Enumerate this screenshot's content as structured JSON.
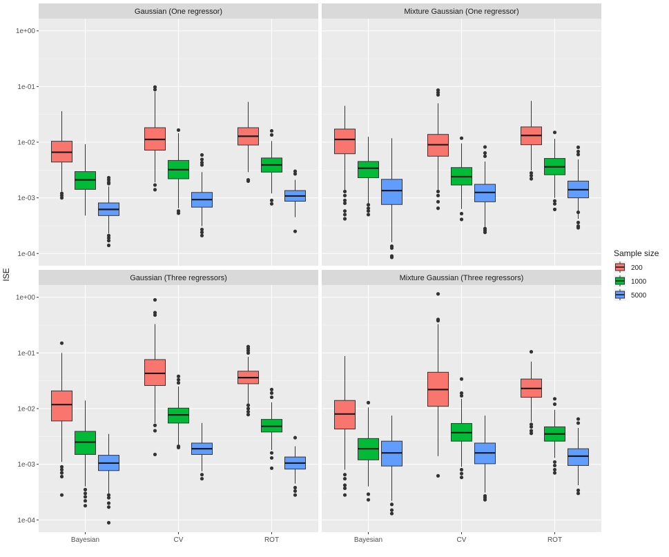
{
  "chart_data": {
    "type": "boxplot",
    "ylabel": "ISE",
    "y_scale": "log10",
    "y_ticks": [
      {
        "value": 1,
        "label": "1e+00"
      },
      {
        "value": 0.1,
        "label": "1e-01"
      },
      {
        "value": 0.01,
        "label": "1e-02"
      },
      {
        "value": 0.001,
        "label": "1e-03"
      },
      {
        "value": 0.0001,
        "label": "1e-04"
      }
    ],
    "ylim": [
      6e-05,
      1.6
    ],
    "categories": [
      "Bayesian",
      "CV",
      "ROT"
    ],
    "legend": {
      "title": "Sample size",
      "position": "right",
      "entries": [
        {
          "label": "200",
          "color": "#F8766D"
        },
        {
          "label": "1000",
          "color": "#00BA38"
        },
        {
          "label": "5000",
          "color": "#619CFF"
        }
      ]
    },
    "panels": [
      {
        "title": "Gaussian (One regressor)",
        "groups": [
          {
            "category": "Bayesian",
            "series": "200",
            "whisker_low": 0.0013,
            "q1": 0.0044,
            "median": 0.0066,
            "q3": 0.0104,
            "whisker_high": 0.036,
            "outliers": [
              0.0012,
              0.0011,
              0.001
            ]
          },
          {
            "category": "Bayesian",
            "series": "1000",
            "whisker_low": 0.00048,
            "q1": 0.00142,
            "median": 0.0021,
            "q3": 0.00296,
            "whisker_high": 0.0092,
            "outliers": []
          },
          {
            "category": "Bayesian",
            "series": "5000",
            "whisker_low": 0.00023,
            "q1": 0.00048,
            "median": 0.00062,
            "q3": 0.00081,
            "whisker_high": 0.0016,
            "outliers": [
              0.0023,
              0.0021,
              0.0019,
              0.0018,
              0.00021,
              0.00019,
              0.00017,
              0.00014
            ]
          },
          {
            "category": "CV",
            "series": "200",
            "whisker_low": 0.0019,
            "q1": 0.0072,
            "median": 0.0112,
            "q3": 0.0182,
            "whisker_high": 0.08,
            "outliers": [
              0.098,
              0.088,
              0.0017,
              0.0014
            ]
          },
          {
            "category": "CV",
            "series": "1000",
            "whisker_low": 0.00065,
            "q1": 0.0022,
            "median": 0.0032,
            "q3": 0.0047,
            "whisker_high": 0.0145,
            "outliers": [
              0.0165,
              0.00058,
              0.00053
            ]
          },
          {
            "category": "CV",
            "series": "5000",
            "whisker_low": 0.00031,
            "q1": 0.00068,
            "median": 0.00093,
            "q3": 0.00125,
            "whisker_high": 0.0029,
            "outliers": [
              0.0059,
              0.0049,
              0.0043,
              0.0039,
              0.00027,
              0.00024,
              0.00021
            ]
          },
          {
            "category": "ROT",
            "series": "200",
            "whisker_low": 0.0029,
            "q1": 0.0089,
            "median": 0.0128,
            "q3": 0.0182,
            "whisker_high": 0.053,
            "outliers": [
              0.0021,
              0.002
            ]
          },
          {
            "category": "ROT",
            "series": "1000",
            "whisker_low": 0.0012,
            "q1": 0.0029,
            "median": 0.0039,
            "q3": 0.0052,
            "whisker_high": 0.0105,
            "outliers": [
              0.016,
              0.0135,
              0.0009,
              0.00078
            ]
          },
          {
            "category": "ROT",
            "series": "5000",
            "whisker_low": 0.00045,
            "q1": 0.00087,
            "median": 0.00108,
            "q3": 0.00135,
            "whisker_high": 0.0021,
            "outliers": [
              0.003,
              0.0027,
              0.00025
            ]
          }
        ]
      },
      {
        "title": "Mixture Gaussian (One regressor)",
        "groups": [
          {
            "category": "Bayesian",
            "series": "200",
            "whisker_low": 0.0014,
            "q1": 0.0062,
            "median": 0.0112,
            "q3": 0.0172,
            "whisker_high": 0.045,
            "outliers": [
              0.0013,
              0.0011,
              0.0009,
              0.0008,
              0.00058,
              0.0005,
              0.00042
            ]
          },
          {
            "category": "Bayesian",
            "series": "1000",
            "whisker_low": 0.0008,
            "q1": 0.0023,
            "median": 0.0034,
            "q3": 0.0045,
            "whisker_high": 0.0125,
            "outliers": [
              0.00075,
              0.00065,
              0.00058,
              0.0005
            ]
          },
          {
            "category": "Bayesian",
            "series": "5000",
            "whisker_low": 0.00016,
            "q1": 0.00076,
            "median": 0.00135,
            "q3": 0.00215,
            "whisker_high": 0.0118,
            "outliers": [
              0.000135,
              0.000125,
              9e-05,
              8.5e-05
            ]
          },
          {
            "category": "CV",
            "series": "200",
            "whisker_low": 0.0014,
            "q1": 0.0056,
            "median": 0.009,
            "q3": 0.0138,
            "whisker_high": 0.05,
            "outliers": [
              0.086,
              0.078,
              0.071,
              0.0013,
              0.0011,
              0.00085,
              0.00065
            ]
          },
          {
            "category": "CV",
            "series": "1000",
            "whisker_low": 0.00063,
            "q1": 0.0017,
            "median": 0.0024,
            "q3": 0.0035,
            "whisker_high": 0.0095,
            "outliers": [
              0.0118,
              0.00052,
              0.00041
            ]
          },
          {
            "category": "CV",
            "series": "5000",
            "whisker_low": 0.0003,
            "q1": 0.00085,
            "median": 0.00125,
            "q3": 0.00175,
            "whisker_high": 0.0045,
            "outliers": [
              0.0082,
              0.0064,
              0.0056,
              0.00028,
              0.00026,
              0.00024
            ]
          },
          {
            "category": "ROT",
            "series": "200",
            "whisker_low": 0.0031,
            "q1": 0.009,
            "median": 0.0132,
            "q3": 0.0188,
            "whisker_high": 0.055,
            "outliers": [
              0.0028,
              0.0025,
              0.0022
            ]
          },
          {
            "category": "ROT",
            "series": "1000",
            "whisker_low": 0.001,
            "q1": 0.0026,
            "median": 0.0036,
            "q3": 0.0051,
            "whisker_high": 0.0115,
            "outliers": [
              0.015,
              0.00088,
              0.00078,
              0.00062
            ]
          },
          {
            "category": "ROT",
            "series": "5000",
            "whisker_low": 0.00042,
            "q1": 0.001,
            "median": 0.0014,
            "q3": 0.002,
            "whisker_high": 0.0049,
            "outliers": [
              0.0081,
              0.0068,
              0.006,
              0.00055,
              0.00036,
              0.00031,
              0.00029
            ]
          }
        ]
      },
      {
        "title": "Gaussian (Three regressors)",
        "groups": [
          {
            "category": "Bayesian",
            "series": "200",
            "whisker_low": 0.0011,
            "q1": 0.006,
            "median": 0.0118,
            "q3": 0.0208,
            "whisker_high": 0.1,
            "outliers": [
              0.15,
              0.0009,
              0.0008,
              0.0007,
              0.0006,
              0.00028
            ]
          },
          {
            "category": "Bayesian",
            "series": "1000",
            "whisker_low": 0.0004,
            "q1": 0.0015,
            "median": 0.0025,
            "q3": 0.0039,
            "whisker_high": 0.014,
            "outliers": [
              0.00035,
              0.0003,
              0.00026,
              0.00022,
              0.00018
            ]
          },
          {
            "category": "Bayesian",
            "series": "5000",
            "whisker_low": 0.0003,
            "q1": 0.00077,
            "median": 0.00105,
            "q3": 0.00145,
            "whisker_high": 0.0035,
            "outliers": [
              0.00028,
              0.00025,
              0.0002,
              0.00017,
              8.9e-05
            ]
          },
          {
            "category": "CV",
            "series": "200",
            "whisker_low": 0.0055,
            "q1": 0.026,
            "median": 0.043,
            "q3": 0.076,
            "whisker_high": 0.33,
            "outliers": [
              0.9,
              0.53,
              0.48,
              0.005,
              0.004,
              0.0015
            ]
          },
          {
            "category": "CV",
            "series": "1000",
            "whisker_low": 0.0022,
            "q1": 0.0055,
            "median": 0.0077,
            "q3": 0.0102,
            "whisker_high": 0.025,
            "outliers": [
              0.038,
              0.033,
              0.029,
              0.0021,
              0.002
            ]
          },
          {
            "category": "CV",
            "series": "5000",
            "whisker_low": 0.00075,
            "q1": 0.0015,
            "median": 0.0019,
            "q3": 0.0024,
            "whisker_high": 0.0055,
            "outliers": [
              0.00065,
              0.00055
            ]
          },
          {
            "category": "ROT",
            "series": "200",
            "whisker_low": 0.012,
            "q1": 0.028,
            "median": 0.036,
            "q3": 0.047,
            "whisker_high": 0.085,
            "outliers": [
              0.13,
              0.12,
              0.11,
              0.1,
              0.0115,
              0.01,
              0.0088,
              0.0078
            ]
          },
          {
            "category": "ROT",
            "series": "1000",
            "whisker_low": 0.0018,
            "q1": 0.0038,
            "median": 0.0048,
            "q3": 0.0064,
            "whisker_high": 0.013,
            "outliers": [
              0.022,
              0.019,
              0.016,
              0.0016,
              0.0013,
              0.00085
            ]
          },
          {
            "category": "ROT",
            "series": "5000",
            "whisker_low": 0.00045,
            "q1": 0.00082,
            "median": 0.00105,
            "q3": 0.00135,
            "whisker_high": 0.0021,
            "outliers": [
              0.003,
              0.00038,
              0.00033,
              0.00028
            ]
          }
        ]
      },
      {
        "title": "Mixture Gaussian (Three regressors)",
        "groups": [
          {
            "category": "Bayesian",
            "series": "200",
            "whisker_low": 0.0008,
            "q1": 0.0043,
            "median": 0.008,
            "q3": 0.014,
            "whisker_high": 0.088,
            "outliers": [
              0.00065,
              0.00055,
              0.00042,
              0.00037,
              0.00028
            ]
          },
          {
            "category": "Bayesian",
            "series": "1000",
            "whisker_low": 0.0004,
            "q1": 0.0012,
            "median": 0.0019,
            "q3": 0.0029,
            "whisker_high": 0.0105,
            "outliers": [
              0.0128,
              0.00029,
              0.00023
            ]
          },
          {
            "category": "Bayesian",
            "series": "5000",
            "whisker_low": 0.00022,
            "q1": 0.00093,
            "median": 0.0016,
            "q3": 0.0026,
            "whisker_high": 0.0075,
            "outliers": [
              0.00019,
              0.00015,
              0.00013
            ]
          },
          {
            "category": "CV",
            "series": "200",
            "whisker_low": 0.0014,
            "q1": 0.011,
            "median": 0.022,
            "q3": 0.045,
            "whisker_high": 0.33,
            "outliers": [
              1.15,
              0.4,
              0.38,
              0.00062
            ]
          },
          {
            "category": "CV",
            "series": "1000",
            "whisker_low": 0.0009,
            "q1": 0.0026,
            "median": 0.0037,
            "q3": 0.0054,
            "whisker_high": 0.015,
            "outliers": [
              0.034,
              0.019,
              0.017,
              0.0008,
              0.00068,
              0.00058
            ]
          },
          {
            "category": "CV",
            "series": "5000",
            "whisker_low": 0.00031,
            "q1": 0.00102,
            "median": 0.0016,
            "q3": 0.0024,
            "whisker_high": 0.0075,
            "outliers": [
              0.00027,
              0.00025,
              0.00023
            ]
          },
          {
            "category": "ROT",
            "series": "200",
            "whisker_low": 0.0058,
            "q1": 0.016,
            "median": 0.023,
            "q3": 0.034,
            "whisker_high": 0.07,
            "outliers": [
              0.105,
              0.0052,
              0.0047,
              0.004,
              0.0036
            ]
          },
          {
            "category": "ROT",
            "series": "1000",
            "whisker_low": 0.0013,
            "q1": 0.0026,
            "median": 0.0035,
            "q3": 0.0047,
            "whisker_high": 0.0095,
            "outliers": [
              0.015,
              0.012,
              0.0011,
              0.00095,
              0.0008,
              0.0007
            ]
          },
          {
            "category": "ROT",
            "series": "5000",
            "whisker_low": 0.00042,
            "q1": 0.00095,
            "median": 0.0014,
            "q3": 0.0019,
            "whisker_high": 0.0045,
            "outliers": [
              0.0065,
              0.0055,
              0.00034,
              0.0003
            ]
          }
        ]
      }
    ]
  }
}
